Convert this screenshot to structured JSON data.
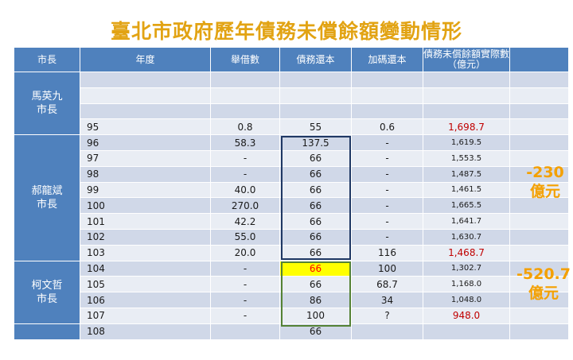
{
  "title": "臺北市政府歷年債務未償餘額變動情形",
  "headers": {
    "mayor": "市長",
    "year": "年度",
    "borrow": "舉借數",
    "repay": "債務還本",
    "extra": "加碼還本",
    "balance_line1": "債務未償餘額實際數",
    "balance_line2": "（億元）"
  },
  "mayors": {
    "ma": [
      "馬英九",
      "市長"
    ],
    "hau": [
      "郝龍斌",
      "市長"
    ],
    "ko": [
      "柯文哲",
      "市長"
    ]
  },
  "rows": [
    {
      "year": "",
      "borrow": "",
      "repay": "",
      "extra": "",
      "balance": ""
    },
    {
      "year": "",
      "borrow": "",
      "repay": "",
      "extra": "",
      "balance": ""
    },
    {
      "year": "",
      "borrow": "",
      "repay": "",
      "extra": "",
      "balance": ""
    },
    {
      "year": "95",
      "borrow": "0.8",
      "repay": "55",
      "extra": "0.6",
      "balance": "1,698.7"
    },
    {
      "year": "96",
      "borrow": "58.3",
      "repay": "137.5",
      "extra": "-",
      "balance": "1,619.5"
    },
    {
      "year": "97",
      "borrow": "-",
      "repay": "66",
      "extra": "-",
      "balance": "1,553.5"
    },
    {
      "year": "98",
      "borrow": "-",
      "repay": "66",
      "extra": "-",
      "balance": "1,487.5"
    },
    {
      "year": "99",
      "borrow": "40.0",
      "repay": "66",
      "extra": "-",
      "balance": "1,461.5"
    },
    {
      "year": "100",
      "borrow": "270.0",
      "repay": "66",
      "extra": "-",
      "balance": "1,665.5"
    },
    {
      "year": "101",
      "borrow": "42.2",
      "repay": "66",
      "extra": "-",
      "balance": "1,641.7"
    },
    {
      "year": "102",
      "borrow": "55.0",
      "repay": "66",
      "extra": "-",
      "balance": "1,630.7"
    },
    {
      "year": "103",
      "borrow": "20.0",
      "repay": "66",
      "extra": "116",
      "balance": "1,468.7"
    },
    {
      "year": "104",
      "borrow": "-",
      "repay": "66",
      "extra": "100",
      "balance": "1,302.7"
    },
    {
      "year": "105",
      "borrow": "-",
      "repay": "66",
      "extra": "68.7",
      "balance": "1,168.0"
    },
    {
      "year": "106",
      "borrow": "-",
      "repay": "86",
      "extra": "34",
      "balance": "1,048.0"
    },
    {
      "year": "107",
      "borrow": "-",
      "repay": "100",
      "extra": "?",
      "balance": "948.0"
    },
    {
      "year": "108",
      "borrow": "",
      "repay": "66",
      "extra": "",
      "balance": ""
    }
  ],
  "annotations": {
    "hau_change": [
      "-230",
      "億元"
    ],
    "ko_change": [
      "-520.7",
      "億元"
    ]
  },
  "colors": {
    "title": "#e2a313",
    "header_bg": "#4f81bd",
    "row_dark": "#d0d8e8",
    "row_light": "#e9edf4",
    "highlight_red": "#c00000",
    "highlight_yellow": "#ffff00",
    "box_blue": "#1f3864",
    "box_green": "#548235",
    "annotation": "#f4a000"
  }
}
